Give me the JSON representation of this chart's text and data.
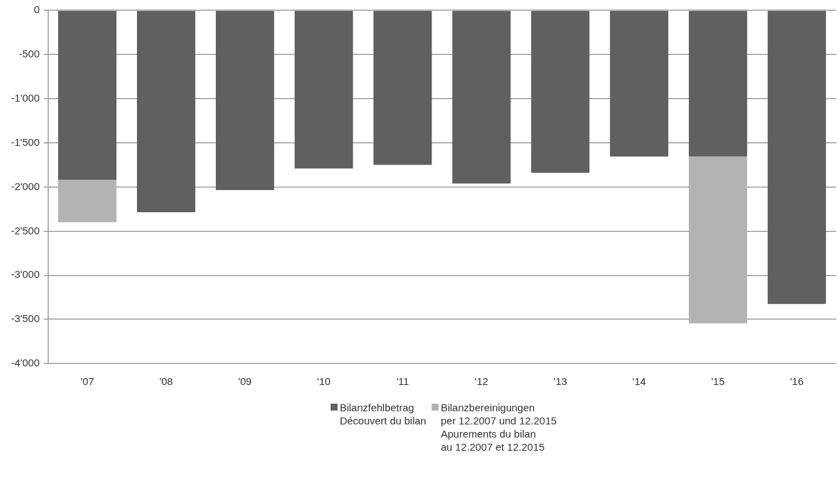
{
  "chart_data": {
    "type": "bar",
    "stacked": true,
    "categories": [
      "'07",
      "'08",
      "'09",
      "'10",
      "'11",
      "'12",
      "'13",
      "'14",
      "'15",
      "'16"
    ],
    "series": [
      {
        "name": "Bilanzfehlbetrag\nDécouvert du bilan",
        "color": "#606060",
        "values": [
          -1920,
          -2285,
          -2035,
          -1790,
          -1750,
          -1960,
          -1840,
          -1655,
          -1655,
          -3325
        ]
      },
      {
        "name": "Bilanzbereinigungen\nper 12.2007 und 12.2015\nApurements du bilan\nau 12.2007 et 12.2015",
        "color": "#b3b3b3",
        "values": [
          -480,
          null,
          null,
          null,
          null,
          null,
          null,
          null,
          -1890,
          null
        ]
      }
    ],
    "ylim": [
      -4000,
      0
    ],
    "yticks": [
      {
        "value": -4000,
        "label": "-4'000"
      },
      {
        "value": -3500,
        "label": "-3'500"
      },
      {
        "value": -3000,
        "label": "-3'000"
      },
      {
        "value": -2500,
        "label": "-2'500"
      },
      {
        "value": -2000,
        "label": "-2'000"
      },
      {
        "value": -1500,
        "label": "-1'500"
      },
      {
        "value": -1000,
        "label": "-1'000"
      },
      {
        "value": -500,
        "label": "-500"
      },
      0
    ],
    "grid": "y",
    "legend": "bottom"
  }
}
